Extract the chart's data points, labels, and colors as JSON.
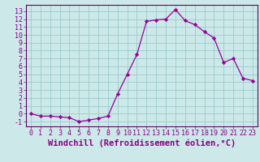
{
  "x": [
    0,
    1,
    2,
    3,
    4,
    5,
    6,
    7,
    8,
    9,
    10,
    11,
    12,
    13,
    14,
    15,
    16,
    17,
    18,
    19,
    20,
    21,
    22,
    23
  ],
  "y": [
    0.0,
    -0.3,
    -0.3,
    -0.4,
    -0.5,
    -1.0,
    -0.8,
    -0.6,
    -0.3,
    2.5,
    5.0,
    7.5,
    11.7,
    11.9,
    12.0,
    13.2,
    11.8,
    11.3,
    10.4,
    9.6,
    6.5,
    7.0,
    4.5,
    4.2
  ],
  "line_color": "#990099",
  "marker": "D",
  "marker_size": 2.2,
  "bg_color": "#cce8e8",
  "grid_color": "#99cccc",
  "xlabel": "Windchill (Refroidissement éolien,°C)",
  "xlim": [
    -0.5,
    23.5
  ],
  "ylim": [
    -1.6,
    13.8
  ],
  "yticks": [
    -1,
    0,
    1,
    2,
    3,
    4,
    5,
    6,
    7,
    8,
    9,
    10,
    11,
    12,
    13
  ],
  "xticks": [
    0,
    1,
    2,
    3,
    4,
    5,
    6,
    7,
    8,
    9,
    10,
    11,
    12,
    13,
    14,
    15,
    16,
    17,
    18,
    19,
    20,
    21,
    22,
    23
  ],
  "tick_color": "#880088",
  "label_fontsize": 7.5,
  "tick_fontsize": 6.0,
  "spine_color": "#660066",
  "linewidth": 0.9
}
